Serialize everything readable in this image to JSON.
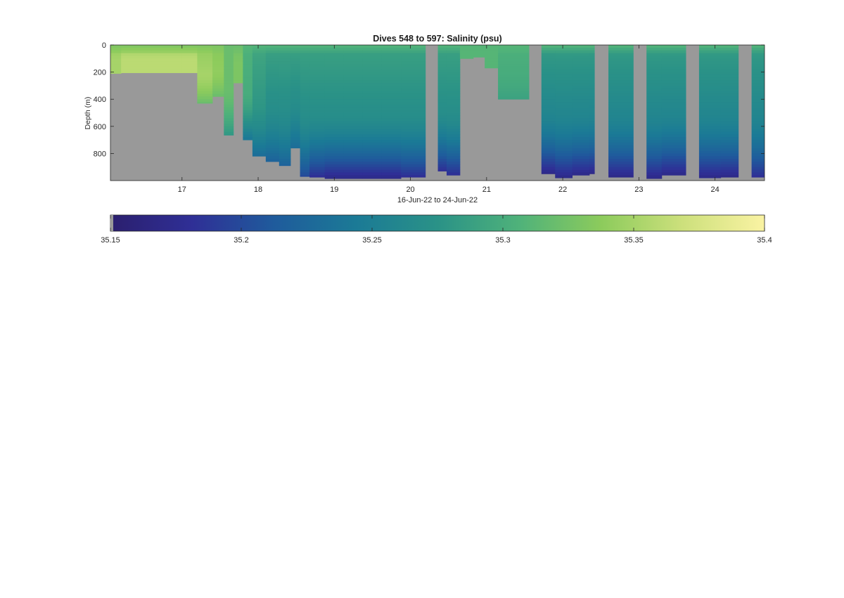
{
  "chart_data": {
    "type": "heatmap",
    "title": "Dives 548 to 597: Salinity (psu)",
    "xlabel": "16-Jun-22 to 24-Jun-22",
    "ylabel": "Depth (m)",
    "xlim": [
      16.06,
      24.65
    ],
    "ylim": [
      0,
      1000
    ],
    "y_reversed": true,
    "x_ticks": [
      17,
      18,
      19,
      20,
      21,
      22,
      23,
      24
    ],
    "x_tick_labels": [
      "17",
      "18",
      "19",
      "20",
      "21",
      "22",
      "23",
      "24"
    ],
    "y_ticks": [
      0,
      200,
      400,
      600,
      800
    ],
    "y_tick_labels": [
      "0",
      "200",
      "400",
      "600",
      "800"
    ],
    "no_data_color": "#999999",
    "colorbar": {
      "range": [
        35.15,
        35.4
      ],
      "ticks": [
        35.15,
        35.2,
        35.25,
        35.3,
        35.35,
        35.4
      ],
      "tick_labels": [
        "35.15",
        "35.2",
        "35.25",
        "35.3",
        "35.35",
        "35.4"
      ],
      "colormap": "parula-like",
      "stops": [
        "#2b1f6e",
        "#2f2f96",
        "#1f5b9c",
        "#1b7a96",
        "#2a9287",
        "#4fb27a",
        "#8ccb5c",
        "#cde07c",
        "#faf3a3"
      ]
    },
    "profiles": [
      {
        "x": 16.1,
        "max_depth": 210,
        "surface": 35.33,
        "mid": 35.35,
        "deep": 35.35
      },
      {
        "x": 16.3,
        "max_depth": 205,
        "surface": 35.33,
        "mid": 35.36,
        "deep": 35.36
      },
      {
        "x": 16.5,
        "max_depth": 205,
        "surface": 35.33,
        "mid": 35.36,
        "deep": 35.36
      },
      {
        "x": 16.7,
        "max_depth": 205,
        "surface": 35.33,
        "mid": 35.36,
        "deep": 35.36
      },
      {
        "x": 16.9,
        "max_depth": 205,
        "surface": 35.33,
        "mid": 35.36,
        "deep": 35.36
      },
      {
        "x": 17.1,
        "max_depth": 205,
        "surface": 35.33,
        "mid": 35.36,
        "deep": 35.36
      },
      {
        "x": 17.3,
        "max_depth": 430,
        "surface": 35.33,
        "mid": 35.35,
        "deep": 35.32
      },
      {
        "x": 17.5,
        "max_depth": 380,
        "surface": 35.33,
        "mid": 35.34,
        "deep": 35.32
      },
      {
        "x": 17.6,
        "max_depth": 665,
        "surface": 35.32,
        "mid": 35.32,
        "deep": 35.28
      },
      {
        "x": 17.75,
        "max_depth": 280,
        "surface": 35.32,
        "mid": 35.33,
        "deep": 35.33
      },
      {
        "x": 17.85,
        "max_depth": 700,
        "surface": 35.31,
        "mid": 35.3,
        "deep": 35.24
      },
      {
        "x": 18.0,
        "max_depth": 820,
        "surface": 35.31,
        "mid": 35.28,
        "deep": 35.23
      },
      {
        "x": 18.2,
        "max_depth": 860,
        "surface": 35.31,
        "mid": 35.27,
        "deep": 35.22
      },
      {
        "x": 18.35,
        "max_depth": 890,
        "surface": 35.31,
        "mid": 35.27,
        "deep": 35.22
      },
      {
        "x": 18.5,
        "max_depth": 760,
        "surface": 35.31,
        "mid": 35.27,
        "deep": 35.23
      },
      {
        "x": 18.6,
        "max_depth": 970,
        "surface": 35.31,
        "mid": 35.27,
        "deep": 35.2
      },
      {
        "x": 18.75,
        "max_depth": 975,
        "surface": 35.31,
        "mid": 35.27,
        "deep": 35.18
      },
      {
        "x": 19.0,
        "max_depth": 985,
        "surface": 35.31,
        "mid": 35.27,
        "deep": 35.17
      },
      {
        "x": 19.25,
        "max_depth": 985,
        "surface": 35.31,
        "mid": 35.27,
        "deep": 35.17
      },
      {
        "x": 19.5,
        "max_depth": 985,
        "surface": 35.31,
        "mid": 35.27,
        "deep": 35.17
      },
      {
        "x": 19.75,
        "max_depth": 985,
        "surface": 35.31,
        "mid": 35.27,
        "deep": 35.17
      },
      {
        "x": 20.0,
        "max_depth": 975,
        "surface": 35.31,
        "mid": 35.27,
        "deep": 35.18
      },
      {
        "x": 20.4,
        "max_depth": 930,
        "surface": 35.31,
        "mid": 35.27,
        "deep": 35.18
      },
      {
        "x": 20.55,
        "max_depth": 960,
        "surface": 35.31,
        "mid": 35.27,
        "deep": 35.18
      },
      {
        "x": 20.75,
        "max_depth": 100,
        "surface": 35.31,
        "mid": 35.31,
        "deep": 35.31
      },
      {
        "x": 20.9,
        "max_depth": 90,
        "surface": 35.31,
        "mid": 35.31,
        "deep": 35.31
      },
      {
        "x": 21.05,
        "max_depth": 170,
        "surface": 35.31,
        "mid": 35.31,
        "deep": 35.31
      },
      {
        "x": 21.25,
        "max_depth": 400,
        "surface": 35.31,
        "mid": 35.3,
        "deep": 35.29
      },
      {
        "x": 21.45,
        "max_depth": 400,
        "surface": 35.31,
        "mid": 35.3,
        "deep": 35.29
      },
      {
        "x": 21.8,
        "max_depth": 950,
        "surface": 35.31,
        "mid": 35.26,
        "deep": 35.17
      },
      {
        "x": 22.0,
        "max_depth": 980,
        "surface": 35.31,
        "mid": 35.26,
        "deep": 35.17
      },
      {
        "x": 22.25,
        "max_depth": 960,
        "surface": 35.31,
        "mid": 35.26,
        "deep": 35.17
      },
      {
        "x": 22.45,
        "max_depth": 950,
        "surface": 35.31,
        "mid": 35.26,
        "deep": 35.17
      },
      {
        "x": 22.75,
        "max_depth": 975,
        "surface": 35.31,
        "mid": 35.26,
        "deep": 35.17
      },
      {
        "x": 23.15,
        "max_depth": 985,
        "surface": 35.31,
        "mid": 35.26,
        "deep": 35.17
      },
      {
        "x": 23.45,
        "max_depth": 960,
        "surface": 35.31,
        "mid": 35.26,
        "deep": 35.17
      },
      {
        "x": 23.95,
        "max_depth": 980,
        "surface": 35.31,
        "mid": 35.26,
        "deep": 35.17
      },
      {
        "x": 24.2,
        "max_depth": 975,
        "surface": 35.31,
        "mid": 35.26,
        "deep": 35.17
      },
      {
        "x": 24.55,
        "max_depth": 975,
        "surface": 35.31,
        "mid": 35.26,
        "deep": 35.18
      }
    ],
    "gaps": [
      {
        "x_start": 20.2,
        "x_end": 20.36
      },
      {
        "x_start": 21.56,
        "x_end": 21.72
      },
      {
        "x_start": 22.42,
        "x_end": 22.6
      },
      {
        "x_start": 22.93,
        "x_end": 23.1
      },
      {
        "x_start": 23.62,
        "x_end": 23.79
      },
      {
        "x_start": 24.31,
        "x_end": 24.48
      }
    ]
  }
}
